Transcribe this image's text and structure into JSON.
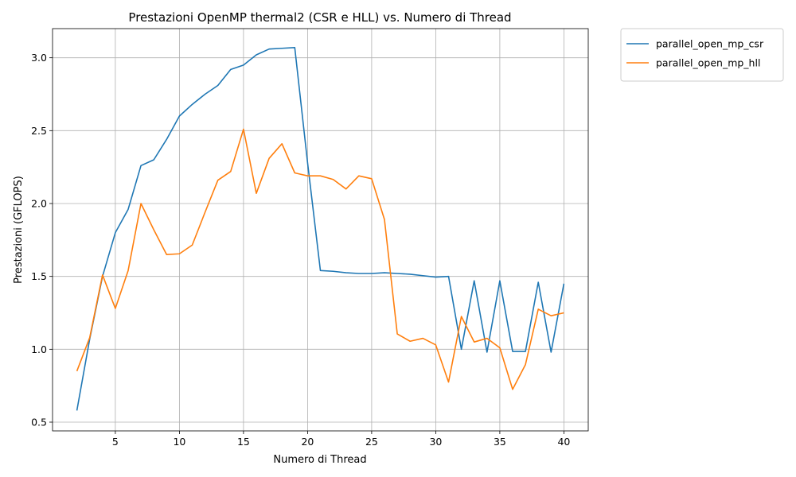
{
  "chart_data": {
    "type": "line",
    "title": "Prestazioni OpenMP thermal2 (CSR e HLL) vs. Numero di Thread",
    "xlabel": "Numero di Thread",
    "ylabel": "Prestazioni (GFLOPS)",
    "xlim": [
      0.1,
      41.9
    ],
    "ylim": [
      0.44,
      3.2
    ],
    "xticks": [
      5,
      10,
      15,
      20,
      25,
      30,
      35,
      40
    ],
    "yticks": [
      0.5,
      1.0,
      1.5,
      2.0,
      2.5,
      3.0
    ],
    "ytick_labels": [
      "0.5",
      "1.0",
      "1.5",
      "2.0",
      "2.5",
      "3.0"
    ],
    "grid": true,
    "legend_position": "outside-top-right",
    "x": [
      2,
      3,
      4,
      5,
      6,
      7,
      8,
      9,
      10,
      11,
      12,
      13,
      14,
      15,
      16,
      17,
      18,
      19,
      20,
      21,
      22,
      23,
      24,
      25,
      26,
      27,
      28,
      29,
      30,
      31,
      32,
      33,
      34,
      35,
      36,
      37,
      38,
      39,
      40
    ],
    "series": [
      {
        "name": "parallel_open_mp_csr",
        "color": "#1f77b4",
        "values": [
          0.58,
          1.07,
          1.5,
          1.8,
          1.96,
          2.26,
          2.3,
          2.44,
          2.6,
          2.68,
          2.75,
          2.81,
          2.92,
          2.95,
          3.02,
          3.06,
          3.065,
          3.07,
          2.28,
          1.54,
          1.535,
          1.525,
          1.52,
          1.52,
          1.525,
          1.52,
          1.515,
          1.505,
          1.495,
          1.5,
          1.0,
          1.47,
          0.98,
          1.47,
          0.985,
          0.985,
          1.46,
          0.98,
          1.45
        ]
      },
      {
        "name": "parallel_open_mp_hll",
        "color": "#ff7f0e",
        "values": [
          0.85,
          1.08,
          1.51,
          1.28,
          1.54,
          2.0,
          1.82,
          1.65,
          1.655,
          1.715,
          1.94,
          2.16,
          2.22,
          2.51,
          2.07,
          2.31,
          2.41,
          2.21,
          2.19,
          2.19,
          2.165,
          2.1,
          2.19,
          2.17,
          1.89,
          1.105,
          1.055,
          1.075,
          1.03,
          0.775,
          1.225,
          1.05,
          1.075,
          1.01,
          0.725,
          0.895,
          1.275,
          1.23,
          1.25
        ]
      }
    ]
  }
}
